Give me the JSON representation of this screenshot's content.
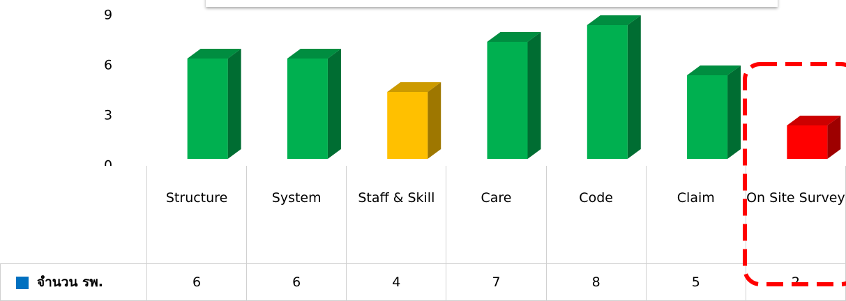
{
  "chart_data": {
    "type": "bar",
    "categories": [
      "Structure",
      "System",
      "Staff & Skill",
      "Care",
      "Code",
      "Claim",
      "On Site Survey"
    ],
    "series": [
      {
        "name": "จำนวน รพ.",
        "color": "#0070c0",
        "values": [
          6,
          6,
          4,
          7,
          8,
          5,
          2
        ]
      }
    ],
    "colors": [
      "#00b050",
      "#00b050",
      "#ffc000",
      "#00b050",
      "#00b050",
      "#00b050",
      "#ff0000"
    ],
    "ylim": [
      0,
      9
    ],
    "yticks": [
      0,
      3,
      6,
      9
    ],
    "grid": false
  }
}
